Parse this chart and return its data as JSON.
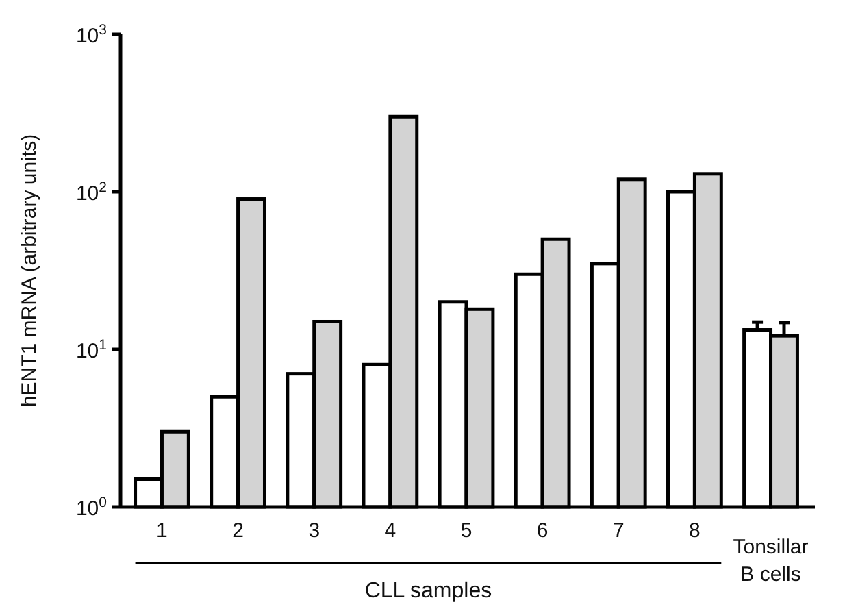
{
  "chart_data": {
    "type": "bar",
    "ylabel": "hENT1 mRNA (arbitrary units)",
    "categories": [
      "1",
      "2",
      "3",
      "4",
      "5",
      "6",
      "7",
      "8",
      "Tonsillar B cells"
    ],
    "series": [
      {
        "color": "#ffffff",
        "values": [
          1.5,
          5,
          7,
          8,
          20,
          30,
          35,
          100,
          13.3
        ],
        "errors": [
          null,
          null,
          null,
          null,
          null,
          null,
          null,
          null,
          1.6
        ]
      },
      {
        "color": "#d3d3d3",
        "values": [
          3,
          90,
          15,
          300,
          18,
          50,
          120,
          130,
          12.2
        ],
        "errors": [
          null,
          null,
          null,
          null,
          null,
          null,
          null,
          null,
          2.6
        ]
      }
    ],
    "log": true,
    "ylim": [
      1,
      1000
    ],
    "yticks": [
      {
        "value": 1,
        "label": "10$^{0}$"
      },
      {
        "value": 10,
        "label": "10$^{1}$"
      },
      {
        "value": 100,
        "label": "10$^{2}$"
      },
      {
        "value": 1000,
        "label": "10$^{3}$"
      }
    ],
    "annotations": [
      "CLL samples"
    ]
  }
}
